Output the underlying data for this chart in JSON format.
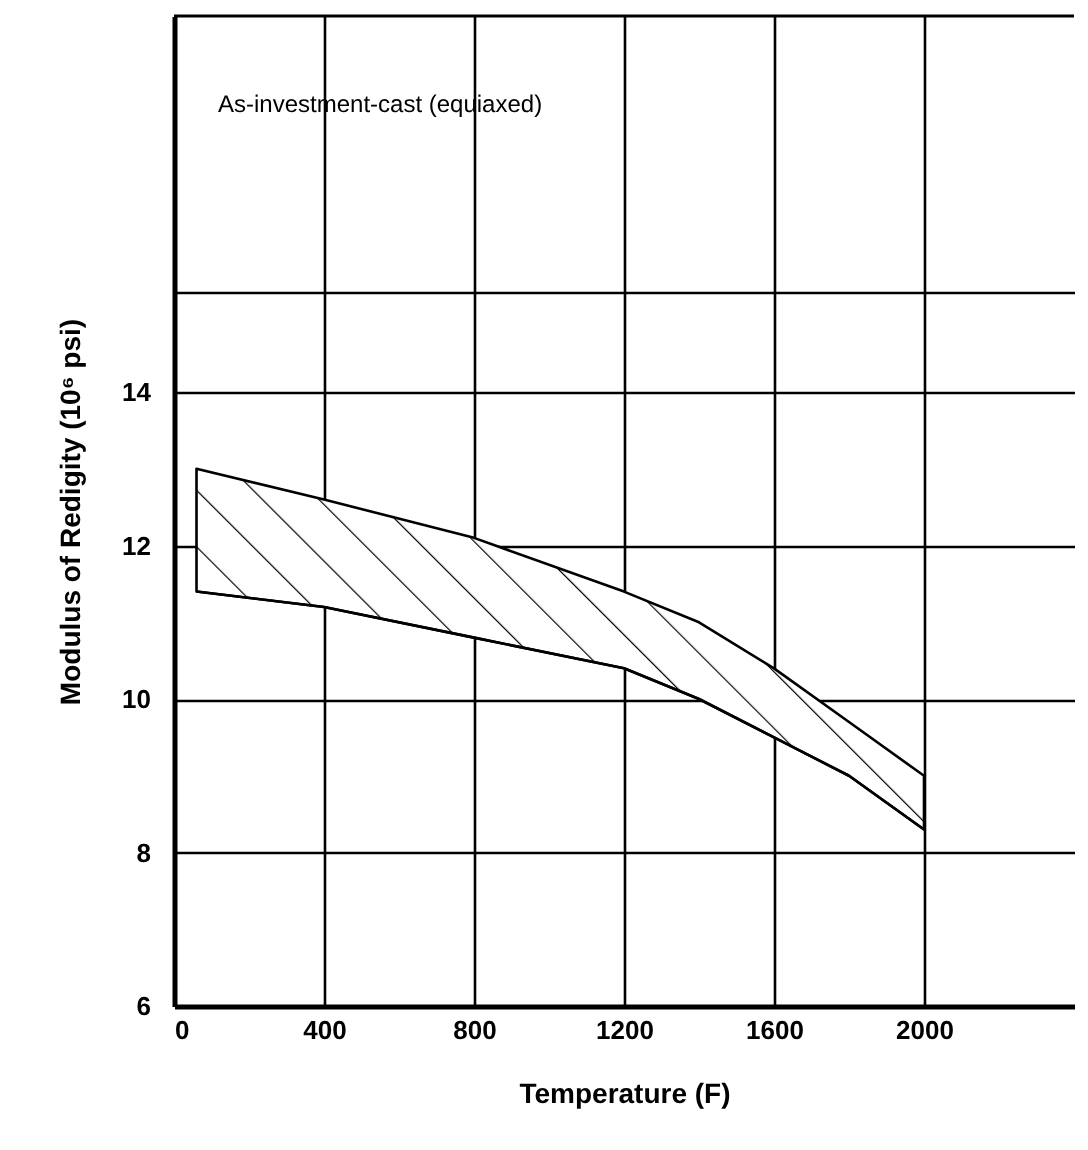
{
  "chart_data": {
    "type": "line",
    "title": "As-investment-cast (equiaxed)",
    "xlabel": "Temperature (F)",
    "ylabel": "Modulus of Redigity (10⁶ psi)",
    "x": [
      60,
      400,
      800,
      1200,
      1400,
      1600,
      1800,
      2000
    ],
    "series": [
      {
        "color": "#000000",
        "values": [
          11.4,
          11.2,
          10.8,
          10.4,
          10.0,
          9.5,
          9.0,
          8.3
        ],
        "lower": [
          11.4,
          11.2,
          10.8,
          10.4,
          10.0,
          9.5,
          9.0,
          8.3
        ],
        "upper": [
          13.0,
          12.6,
          12.1,
          11.4,
          11.0,
          10.4,
          9.7,
          9.0
        ]
      }
    ],
    "xlim": [
      0,
      2400
    ],
    "xticks": [
      0,
      400,
      800,
      1200,
      1600,
      2000
    ],
    "ylim": [
      6,
      18.9
    ],
    "yticks": [
      6,
      8,
      10,
      12,
      14,
      {
        "value": 15.3,
        "label": null
      }
    ],
    "grid": true
  }
}
